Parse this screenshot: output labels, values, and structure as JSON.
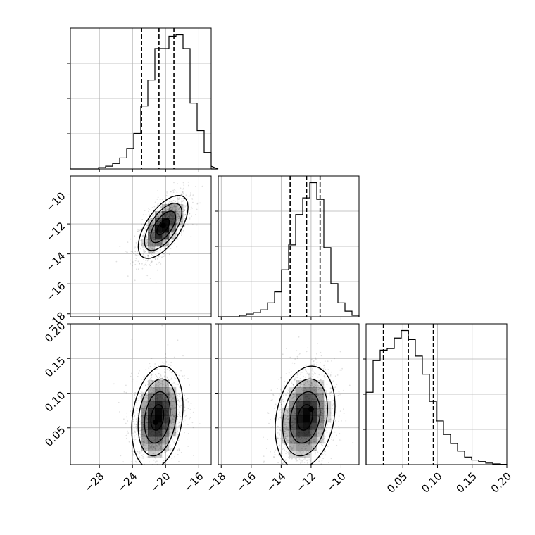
{
  "chart_data": {
    "type": "corner",
    "parameters": 3,
    "grid": true,
    "colors": {
      "line": "#000000",
      "grid": "#b0b0b0",
      "density": "#000000"
    },
    "panels": [
      {
        "name": "hist-p1",
        "type": "histogram",
        "row": 0,
        "col": 0,
        "xlim": [
          -31.5,
          -14.5
        ],
        "quantile_lines": [
          -22.9,
          -20.8,
          -19.0
        ],
        "bins": {
          "start": -31.5,
          "width": 0.85,
          "counts": [
            0,
            0,
            0,
            0,
            0.01,
            0.02,
            0.04,
            0.08,
            0.15,
            0.26,
            0.46,
            0.65,
            0.88,
            0.88,
            0.97,
            0.98,
            0.88,
            0.48,
            0.28,
            0.12,
            0.02,
            0
          ]
        }
      },
      {
        "name": "hist-p2",
        "type": "histogram",
        "row": 1,
        "col": 1,
        "xlim": [
          -18.2,
          -8.8
        ],
        "quantile_lines": [
          -13.4,
          -12.3,
          -11.4
        ],
        "bins": {
          "start": -18.2,
          "width": 0.47,
          "counts": [
            0,
            0,
            0,
            0.01,
            0.02,
            0.03,
            0.05,
            0.1,
            0.18,
            0.34,
            0.52,
            0.74,
            0.86,
            0.97,
            0.85,
            0.5,
            0.24,
            0.1,
            0.04,
            0.01
          ]
        }
      },
      {
        "name": "hist-p3",
        "type": "histogram",
        "row": 2,
        "col": 2,
        "xlim": [
          -0.003,
          0.2
        ],
        "quantile_lines": [
          0.022,
          0.058,
          0.094
        ],
        "bins": {
          "start": -0.003,
          "width": 0.01015,
          "counts": [
            0.48,
            0.69,
            0.76,
            0.77,
            0.84,
            0.89,
            0.83,
            0.72,
            0.6,
            0.42,
            0.29,
            0.2,
            0.14,
            0.09,
            0.05,
            0.03,
            0.02,
            0.01,
            0.005,
            0.002
          ]
        }
      },
      {
        "name": "scatter-p2-vs-p1",
        "type": "density",
        "row": 1,
        "col": 0,
        "xlim": [
          -31.5,
          -14.5
        ],
        "ylim": [
          -18.2,
          -8.8
        ],
        "center": [
          -20.3,
          -12.2
        ],
        "spread": [
          1.5,
          1.05
        ],
        "correlation": 0.62,
        "peak": [
          -20.3,
          -12.1
        ],
        "contour_levels_sigma": [
          0.5,
          1.0,
          1.5,
          2.0
        ]
      },
      {
        "name": "scatter-p3-vs-p1",
        "type": "density",
        "row": 2,
        "col": 0,
        "xlim": [
          -31.5,
          -14.5
        ],
        "ylim": [
          -0.003,
          0.2
        ],
        "center": [
          -21.0,
          0.065
        ],
        "spread": [
          1.55,
          0.037
        ],
        "correlation": 0.22,
        "peak": [
          -21.2,
          0.058
        ],
        "contour_levels_sigma": [
          0.5,
          1.0,
          1.5,
          2.0
        ]
      },
      {
        "name": "scatter-p3-vs-p2",
        "type": "density",
        "row": 2,
        "col": 1,
        "xlim": [
          -18.2,
          -8.8
        ],
        "ylim": [
          -0.003,
          0.2
        ],
        "center": [
          -12.4,
          0.065
        ],
        "spread": [
          1.0,
          0.037
        ],
        "correlation": 0.22,
        "peak": [
          -12.0,
          0.077
        ],
        "contour_levels_sigma": [
          0.5,
          1.0,
          1.5,
          2.0
        ]
      }
    ],
    "axes": {
      "p1": {
        "ticks": [
          -28,
          -24,
          -20,
          -16
        ],
        "tick_labels": [
          "−28",
          "−24",
          "−20",
          "−16"
        ]
      },
      "p2": {
        "ticks": [
          -18,
          -16,
          -14,
          -12,
          -10
        ],
        "tick_labels": [
          "−18",
          "−16",
          "−14",
          "−12",
          "−10"
        ]
      },
      "p3": {
        "ticks": [
          0.05,
          0.1,
          0.15,
          0.2
        ],
        "tick_labels": [
          "0.05",
          "0.10",
          "0.15",
          "0.20"
        ]
      }
    }
  }
}
